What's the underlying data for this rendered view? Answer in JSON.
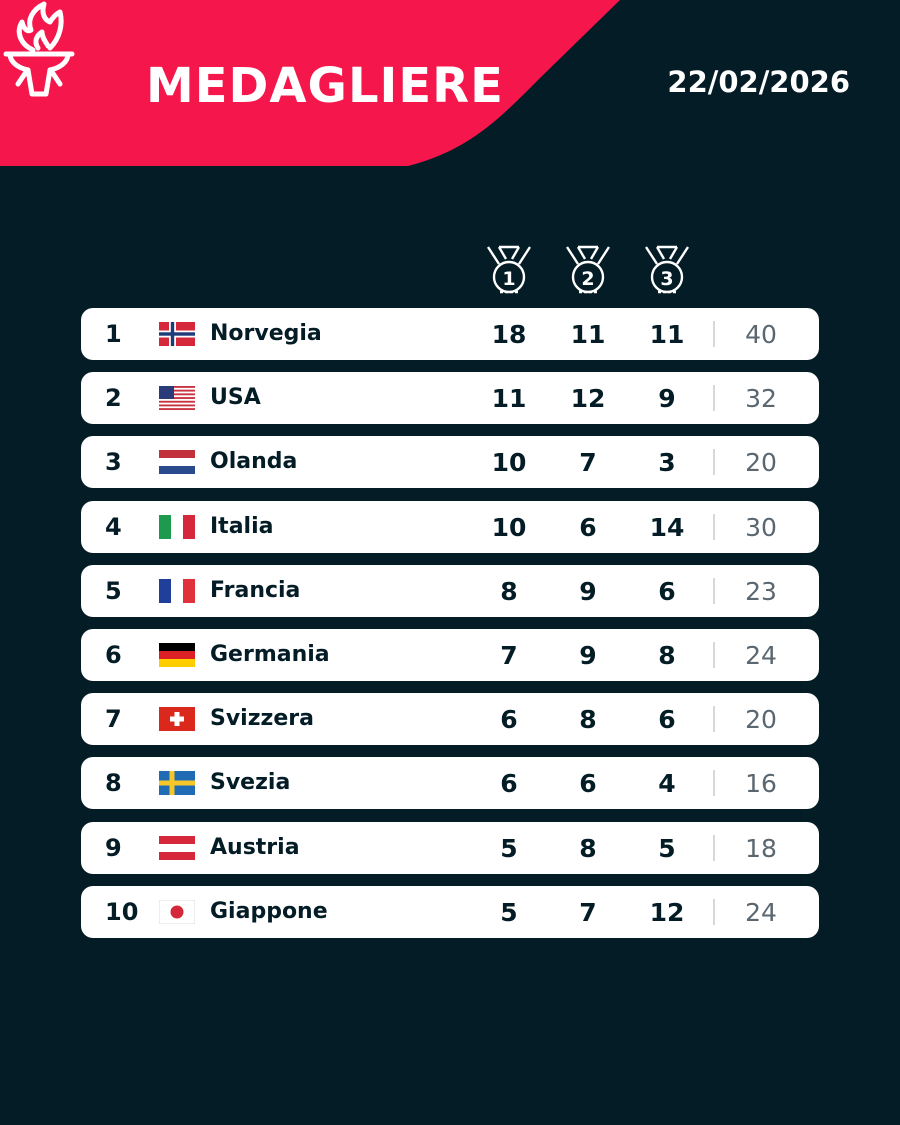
{
  "header": {
    "title": "MEDAGLIERE",
    "date": "22/02/2026",
    "accent_color": "#f5174c",
    "background_color": "#041c26",
    "logo_icon": "torch-icon"
  },
  "medal_columns": [
    {
      "label": "1",
      "icon": "medal-1-icon"
    },
    {
      "label": "2",
      "icon": "medal-2-icon"
    },
    {
      "label": "3",
      "icon": "medal-3-icon"
    }
  ],
  "rows": [
    {
      "rank": "1",
      "country": "Norvegia",
      "flag": "norway-flag-icon",
      "gold": "18",
      "silver": "11",
      "bronze": "11",
      "total": "40"
    },
    {
      "rank": "2",
      "country": "USA",
      "flag": "usa-flag-icon",
      "gold": "11",
      "silver": "12",
      "bronze": "9",
      "total": "32"
    },
    {
      "rank": "3",
      "country": "Olanda",
      "flag": "netherlands-flag-icon",
      "gold": "10",
      "silver": "7",
      "bronze": "3",
      "total": "20"
    },
    {
      "rank": "4",
      "country": "Italia",
      "flag": "italy-flag-icon",
      "gold": "10",
      "silver": "6",
      "bronze": "14",
      "total": "30"
    },
    {
      "rank": "5",
      "country": "Francia",
      "flag": "france-flag-icon",
      "gold": "8",
      "silver": "9",
      "bronze": "6",
      "total": "23"
    },
    {
      "rank": "6",
      "country": "Germania",
      "flag": "germany-flag-icon",
      "gold": "7",
      "silver": "9",
      "bronze": "8",
      "total": "24"
    },
    {
      "rank": "7",
      "country": "Svizzera",
      "flag": "switzerland-flag-icon",
      "gold": "6",
      "silver": "8",
      "bronze": "6",
      "total": "20"
    },
    {
      "rank": "8",
      "country": "Svezia",
      "flag": "sweden-flag-icon",
      "gold": "6",
      "silver": "6",
      "bronze": "4",
      "total": "16"
    },
    {
      "rank": "9",
      "country": "Austria",
      "flag": "austria-flag-icon",
      "gold": "5",
      "silver": "8",
      "bronze": "5",
      "total": "18"
    },
    {
      "rank": "10",
      "country": "Giappone",
      "flag": "japan-flag-icon",
      "gold": "5",
      "silver": "7",
      "bronze": "12",
      "total": "24"
    }
  ]
}
